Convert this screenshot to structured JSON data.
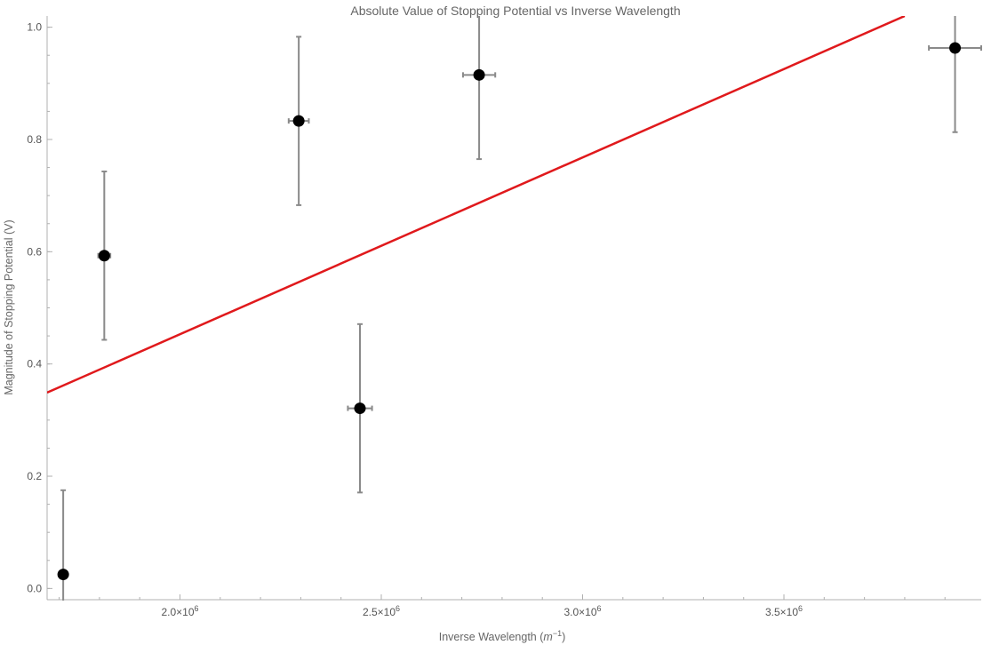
{
  "chart_data": {
    "type": "scatter",
    "title": "Absolute Value of Stopping Potential vs Inverse Wavelength",
    "xlabel_text": "Inverse Wavelength (",
    "xlabel_unit": "m",
    "xlabel_exp": "−1",
    "xlabel_close": ")",
    "ylabel": "Magnitude of Stopping Potential (V)",
    "xlim": [
      1670000,
      3990000
    ],
    "ylim": [
      -0.02,
      1.02
    ],
    "x_ticks": [
      {
        "value": 2000000,
        "mant": "2.0",
        "exp": "6"
      },
      {
        "value": 2500000,
        "mant": "2.5",
        "exp": "6"
      },
      {
        "value": 3000000,
        "mant": "3.0",
        "exp": "6"
      },
      {
        "value": 3500000,
        "mant": "3.5",
        "exp": "6"
      }
    ],
    "y_ticks": [
      {
        "value": 0.0,
        "label": "0.0"
      },
      {
        "value": 0.2,
        "label": "0.2"
      },
      {
        "value": 0.4,
        "label": "0.4"
      },
      {
        "value": 0.6,
        "label": "0.6"
      },
      {
        "value": 0.8,
        "label": "0.8"
      },
      {
        "value": 1.0,
        "label": "1.0"
      }
    ],
    "points": [
      {
        "x": 1710000,
        "y": 0.025,
        "yerr": 0.15,
        "xerr": 10000
      },
      {
        "x": 1812000,
        "y": 0.593,
        "yerr": 0.15,
        "xerr": 15000
      },
      {
        "x": 2295000,
        "y": 0.833,
        "yerr": 0.15,
        "xerr": 25000
      },
      {
        "x": 2447000,
        "y": 0.321,
        "yerr": 0.15,
        "xerr": 30000
      },
      {
        "x": 2743000,
        "y": 0.915,
        "yerr": 0.15,
        "xerr": 40000
      },
      {
        "x": 3925000,
        "y": 0.963,
        "yerr": 0.15,
        "xerr": 65000
      }
    ],
    "fit_line": {
      "x": [
        1670000,
        3800000
      ],
      "y": [
        0.349,
        1.02
      ]
    },
    "colors": {
      "points": "#000000",
      "error_bars": "#8a8a8a",
      "fit_line": "#e0191c"
    },
    "grid": false,
    "legend": "none"
  }
}
